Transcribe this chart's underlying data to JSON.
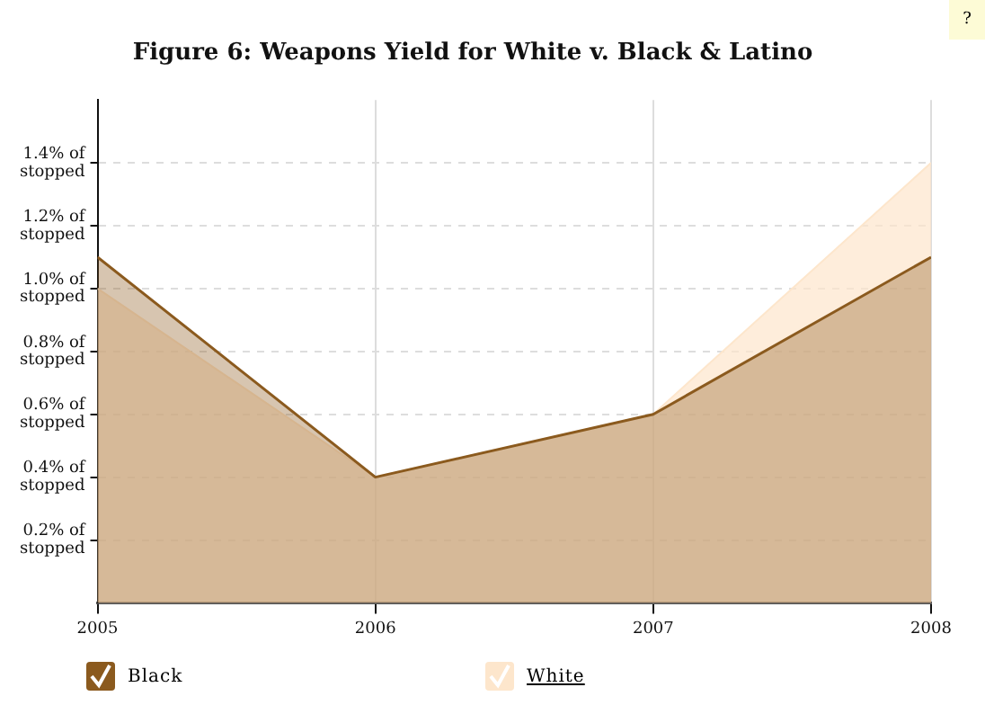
{
  "chart_data": {
    "type": "area",
    "title": "Figure 6: Weapons Yield for White v. Black & Latino",
    "x": [
      2005,
      2006,
      2007,
      2008
    ],
    "series": [
      {
        "name": "Black",
        "color": "#8b5a1e",
        "values": [
          1.1,
          0.4,
          0.6,
          1.1
        ]
      },
      {
        "name": "White",
        "color": "#fde6cc",
        "values": [
          1.0,
          0.4,
          0.6,
          1.4
        ]
      }
    ],
    "xlim": [
      2005,
      2008
    ],
    "xticks": [
      2005,
      2006,
      2007,
      2008
    ],
    "ylim": [
      0,
      1.6
    ],
    "yticks": [
      {
        "value": 0.2,
        "label": "0.2% of stopped"
      },
      {
        "value": 0.4,
        "label": "0.4% of stopped"
      },
      {
        "value": 0.6,
        "label": "0.6% of stopped"
      },
      {
        "value": 0.8,
        "label": "0.8% of stopped"
      },
      {
        "value": 1.0,
        "label": "1.0% of stopped"
      },
      {
        "value": 1.2,
        "label": "1.2% of stopped"
      },
      {
        "value": 1.4,
        "label": "1.4% of stopped"
      }
    ],
    "grid": true,
    "legend": "bottom",
    "marker": "none",
    "annotations": [
      "?"
    ]
  }
}
